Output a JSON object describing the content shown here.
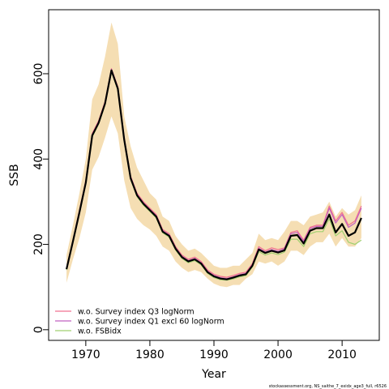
{
  "chart_data": {
    "type": "line",
    "title": "",
    "xlabel": "Year",
    "ylabel": "SSB",
    "xlim": [
      1964.2,
      2015.8
    ],
    "ylim": [
      -25,
      750
    ],
    "xticks": [
      1970,
      1980,
      1990,
      2000,
      2010
    ],
    "yticks": [
      0,
      200,
      400,
      600
    ],
    "grid": false,
    "legend_position": "bottom-left",
    "x": [
      1967,
      1968,
      1969,
      1970,
      1971,
      1972,
      1973,
      1974,
      1975,
      1976,
      1977,
      1978,
      1979,
      1980,
      1981,
      1982,
      1983,
      1984,
      1985,
      1986,
      1987,
      1988,
      1989,
      1990,
      1991,
      1992,
      1993,
      1994,
      1995,
      1996,
      1997,
      1998,
      1999,
      2000,
      2001,
      2002,
      2003,
      2004,
      2005,
      2006,
      2007,
      2008,
      2009,
      2010,
      2011,
      2012,
      2013
    ],
    "band": {
      "color": "#f5deb3",
      "upper": [
        175,
        245,
        320,
        400,
        540,
        575,
        640,
        720,
        670,
        500,
        430,
        380,
        350,
        320,
        305,
        265,
        255,
        220,
        200,
        185,
        190,
        180,
        165,
        150,
        145,
        145,
        150,
        150,
        165,
        180,
        225,
        210,
        215,
        210,
        230,
        255,
        255,
        245,
        265,
        270,
        275,
        300,
        265,
        285,
        270,
        280,
        315
      ],
      "lower": [
        110,
        165,
        215,
        275,
        375,
        405,
        450,
        500,
        460,
        350,
        285,
        260,
        245,
        235,
        220,
        195,
        185,
        160,
        145,
        135,
        140,
        135,
        120,
        108,
        102,
        100,
        105,
        105,
        120,
        130,
        160,
        155,
        160,
        150,
        160,
        185,
        185,
        175,
        195,
        205,
        205,
        225,
        195,
        215,
        195,
        195,
        215
      ]
    },
    "series": [
      {
        "name": "w.o. Survey index Q3 logNorm",
        "color": "#f07090",
        "values": [
          145,
          210,
          280,
          350,
          460,
          490,
          535,
          612,
          570,
          450,
          360,
          320,
          300,
          285,
          270,
          235,
          225,
          195,
          175,
          165,
          170,
          160,
          140,
          130,
          125,
          123,
          127,
          132,
          135,
          155,
          195,
          185,
          192,
          188,
          192,
          228,
          232,
          210,
          240,
          245,
          245,
          290,
          255,
          275,
          245,
          255,
          290
        ]
      },
      {
        "name": "w.o. Survey index Q1 excl 60 logNorm",
        "color": "#c060c0",
        "values": [
          143,
          208,
          277,
          347,
          457,
          487,
          532,
          610,
          567,
          447,
          357,
          317,
          297,
          282,
          267,
          232,
          222,
          192,
          172,
          162,
          167,
          157,
          137,
          127,
          122,
          120,
          124,
          129,
          132,
          152,
          191,
          182,
          188,
          184,
          190,
          225,
          228,
          207,
          237,
          242,
          242,
          285,
          250,
          270,
          240,
          250,
          285
        ]
      },
      {
        "name": "w.o. FSBidx",
        "color": "#a0d070",
        "values": [
          140,
          205,
          273,
          342,
          452,
          482,
          527,
          605,
          562,
          442,
          352,
          312,
          292,
          277,
          262,
          227,
          217,
          187,
          167,
          157,
          162,
          152,
          132,
          122,
          117,
          116,
          119,
          124,
          127,
          147,
          183,
          175,
          180,
          176,
          182,
          212,
          212,
          195,
          225,
          230,
          230,
          260,
          220,
          232,
          205,
          200,
          210
        ]
      },
      {
        "name": "",
        "color": "#000000",
        "values": [
          142,
          207,
          275,
          345,
          455,
          485,
          530,
          608,
          565,
          445,
          355,
          315,
          295,
          280,
          265,
          230,
          220,
          190,
          170,
          160,
          165,
          155,
          135,
          125,
          120,
          118,
          122,
          127,
          130,
          150,
          188,
          180,
          185,
          181,
          186,
          220,
          222,
          202,
          232,
          238,
          238,
          270,
          228,
          248,
          220,
          228,
          262
        ]
      }
    ]
  },
  "footer": "stockassessment.org, NS_saithe_7_exidx_age3_full, r6526"
}
